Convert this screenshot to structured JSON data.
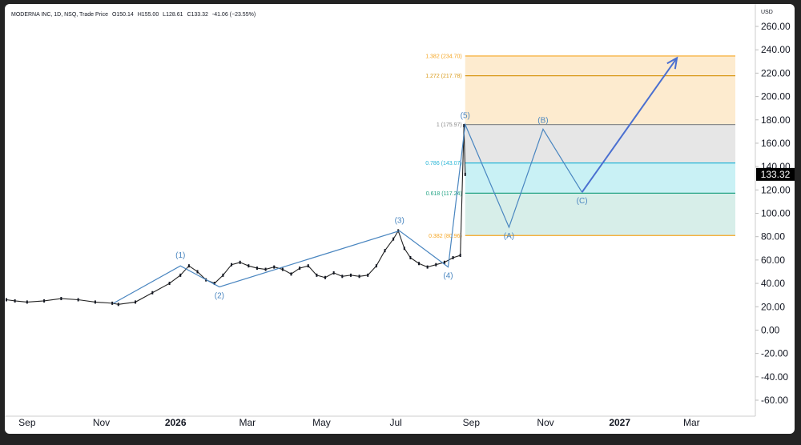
{
  "header": {
    "symbol": "MODERNA INC, 1D, NSQ, Trade Price",
    "open": "O150.14",
    "high": "H155.00",
    "low": "L128.61",
    "close": "C133.32",
    "change": "-41.06 (−23.55%)"
  },
  "colors": {
    "wave": "#4a86c0",
    "projection_arrow": "#4a6fd0",
    "fib_orange": "#f5a623",
    "fib_gray": "#8c8c8c",
    "fib_cyan": "#26b5d6",
    "fib_green": "#22a384",
    "price_badge": "#000000"
  },
  "chart_data": {
    "type": "line",
    "title": "",
    "currency_label": "USD",
    "x": [
      "2025-08-15",
      "2025-08-22",
      "2025-09-01",
      "2025-09-15",
      "2025-09-29",
      "2025-10-13",
      "2025-10-27",
      "2025-11-10",
      "2025-11-15",
      "2025-11-29",
      "2025-12-13",
      "2025-12-27",
      "2026-01-05",
      "2026-01-12",
      "2026-01-19",
      "2026-01-26",
      "2026-02-02",
      "2026-02-09",
      "2026-02-16",
      "2026-02-23",
      "2026-03-02",
      "2026-03-09",
      "2026-03-16",
      "2026-03-23",
      "2026-03-30",
      "2026-04-06",
      "2026-04-13",
      "2026-04-20",
      "2026-04-27",
      "2026-05-04",
      "2026-05-11",
      "2026-05-18",
      "2026-05-25",
      "2026-06-01",
      "2026-06-08",
      "2026-06-15",
      "2026-06-22",
      "2026-06-29",
      "2026-07-03",
      "2026-07-08",
      "2026-07-13",
      "2026-07-20",
      "2026-07-27",
      "2026-08-03",
      "2026-08-10",
      "2026-08-17",
      "2026-08-23",
      "2026-08-26",
      "2026-08-27"
    ],
    "series": [
      {
        "values": [
          26,
          25,
          24,
          25,
          27,
          26,
          24,
          23,
          22,
          24,
          32,
          40,
          47,
          55,
          50,
          43,
          40,
          47,
          56,
          58,
          55,
          53,
          52,
          54,
          52,
          48,
          53,
          55,
          47,
          45,
          49,
          46,
          47,
          46,
          47,
          55,
          68,
          78,
          85,
          70,
          62,
          57,
          54,
          56,
          58,
          62,
          64,
          175,
          133.32
        ]
      }
    ],
    "current_price": "133.32",
    "wave_labels": [
      {
        "label": "(1)",
        "x": "2026-01-05",
        "y": 55
      },
      {
        "label": "(2)",
        "x": "2026-02-06",
        "y": 37
      },
      {
        "label": "(3)",
        "x": "2026-07-04",
        "y": 85
      },
      {
        "label": "(4)",
        "x": "2026-08-13",
        "y": 54
      },
      {
        "label": "(5)",
        "x": "2026-08-27",
        "y": 176
      },
      {
        "label": "(A)",
        "x": "2026-10-02",
        "y": 88
      },
      {
        "label": "(B)",
        "x": "2026-10-30",
        "y": 172
      },
      {
        "label": "(C)",
        "x": "2026-12-01",
        "y": 118
      }
    ],
    "wave_path_x": [
      "2025-11-11",
      "2026-01-05",
      "2026-02-06",
      "2026-07-04",
      "2026-08-13",
      "2026-08-27",
      "2026-10-02",
      "2026-10-30",
      "2026-12-01"
    ],
    "wave_path_y": [
      23,
      55,
      37,
      85,
      54,
      176,
      88,
      172,
      118
    ],
    "projection_x": [
      "2026-12-01",
      "2027-02-17"
    ],
    "projection_y": [
      118,
      233
    ],
    "fib_levels": [
      {
        "label": "1.382 (234.70)",
        "value": 234.7,
        "color": "#f5a623"
      },
      {
        "label": "1.272 (217.78)",
        "value": 217.78,
        "color": "#d99a1a"
      },
      {
        "label": "1 (175.97)",
        "value": 175.97,
        "color": "#8c8c8c"
      },
      {
        "label": "0.786 (143.07)",
        "value": 143.07,
        "color": "#26b5d6"
      },
      {
        "label": "0.618 (117.24)",
        "value": 117.24,
        "color": "#22a384"
      },
      {
        "label": "0.382 (80.96)",
        "value": 80.96,
        "color": "#f5a623"
      }
    ],
    "fib_x_range": [
      "2026-08-27",
      "2027-04-06"
    ],
    "ylim": [
      -70,
      275
    ],
    "yticks": [
      260,
      240,
      220,
      200,
      180,
      160,
      140,
      120,
      100,
      80,
      60,
      40,
      20,
      0,
      -20,
      -40,
      -60
    ],
    "ytick_labels": [
      "260.00",
      "240.00",
      "220.00",
      "200.00",
      "180.00",
      "160.00",
      "140.00",
      "120.00",
      "100.00",
      "80.00",
      "60.00",
      "40.00",
      "20.00",
      "0.00",
      "-20.00",
      "-40.00",
      "-60.00"
    ],
    "xticks": [
      {
        "label": "Sep",
        "date": "2025-09-01",
        "bold": false
      },
      {
        "label": "Nov",
        "date": "2025-11-01",
        "bold": false
      },
      {
        "label": "2026",
        "date": "2026-01-01",
        "bold": true
      },
      {
        "label": "Mar",
        "date": "2026-03-01",
        "bold": false
      },
      {
        "label": "May",
        "date": "2026-05-01",
        "bold": false
      },
      {
        "label": "Jul",
        "date": "2026-07-01",
        "bold": false
      },
      {
        "label": "Sep",
        "date": "2026-09-01",
        "bold": false
      },
      {
        "label": "Nov",
        "date": "2026-11-01",
        "bold": false
      },
      {
        "label": "2027",
        "date": "2027-01-01",
        "bold": true
      },
      {
        "label": "Mar",
        "date": "2027-03-01",
        "bold": false
      }
    ],
    "grid": false,
    "legend": "none"
  }
}
